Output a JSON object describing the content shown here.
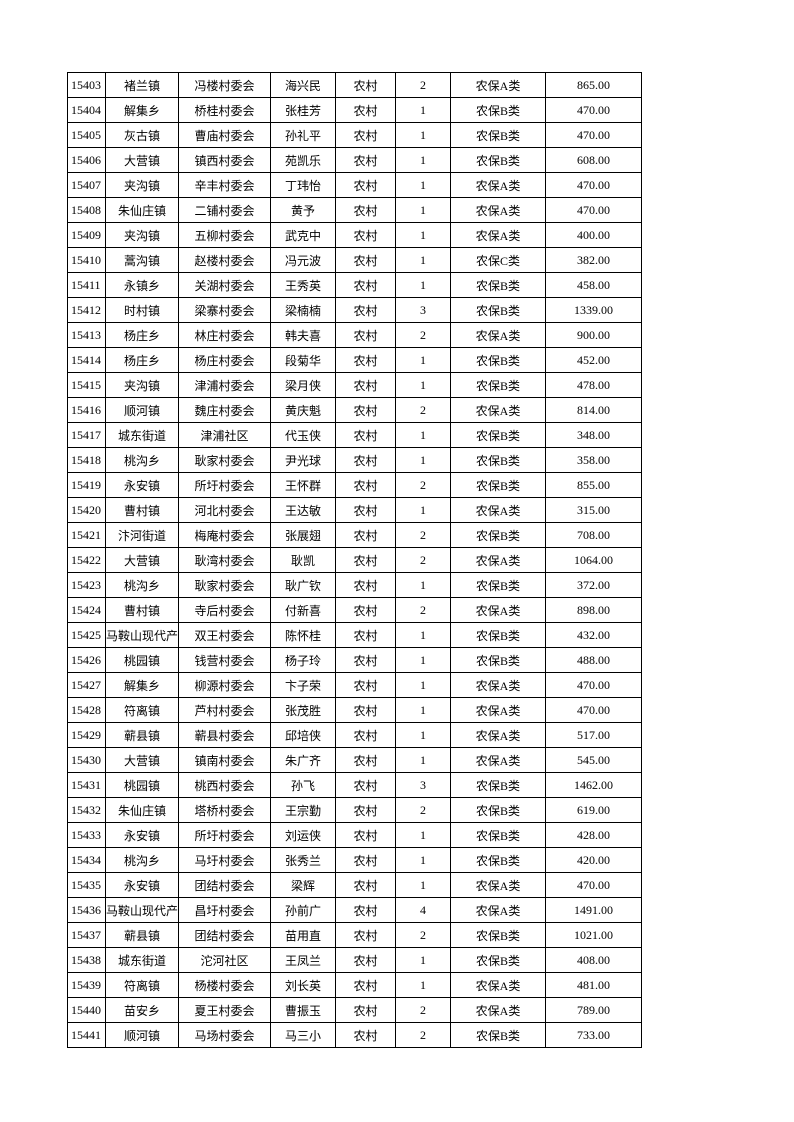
{
  "table": {
    "rows": [
      [
        "15403",
        "褚兰镇",
        "冯楼村委会",
        "海兴民",
        "农村",
        "2",
        "农保A类",
        "865.00"
      ],
      [
        "15404",
        "解集乡",
        "桥桂村委会",
        "张桂芳",
        "农村",
        "1",
        "农保B类",
        "470.00"
      ],
      [
        "15405",
        "灰古镇",
        "曹庙村委会",
        "孙礼平",
        "农村",
        "1",
        "农保B类",
        "470.00"
      ],
      [
        "15406",
        "大营镇",
        "镇西村委会",
        "苑凯乐",
        "农村",
        "1",
        "农保B类",
        "608.00"
      ],
      [
        "15407",
        "夹沟镇",
        "辛丰村委会",
        "丁玮怡",
        "农村",
        "1",
        "农保A类",
        "470.00"
      ],
      [
        "15408",
        "朱仙庄镇",
        "二铺村委会",
        "黄予",
        "农村",
        "1",
        "农保A类",
        "470.00"
      ],
      [
        "15409",
        "夹沟镇",
        "五柳村委会",
        "武克中",
        "农村",
        "1",
        "农保A类",
        "400.00"
      ],
      [
        "15410",
        "蒿沟镇",
        "赵楼村委会",
        "冯元波",
        "农村",
        "1",
        "农保C类",
        "382.00"
      ],
      [
        "15411",
        "永镇乡",
        "关湖村委会",
        "王秀英",
        "农村",
        "1",
        "农保B类",
        "458.00"
      ],
      [
        "15412",
        "时村镇",
        "梁寨村委会",
        "梁楠楠",
        "农村",
        "3",
        "农保B类",
        "1339.00"
      ],
      [
        "15413",
        "杨庄乡",
        "林庄村委会",
        "韩夫喜",
        "农村",
        "2",
        "农保A类",
        "900.00"
      ],
      [
        "15414",
        "杨庄乡",
        "杨庄村委会",
        "段菊华",
        "农村",
        "1",
        "农保B类",
        "452.00"
      ],
      [
        "15415",
        "夹沟镇",
        "津浦村委会",
        "梁月侠",
        "农村",
        "1",
        "农保B类",
        "478.00"
      ],
      [
        "15416",
        "顺河镇",
        "魏庄村委会",
        "黄庆魁",
        "农村",
        "2",
        "农保A类",
        "814.00"
      ],
      [
        "15417",
        "城东街道",
        "津浦社区",
        "代玉侠",
        "农村",
        "1",
        "农保B类",
        "348.00"
      ],
      [
        "15418",
        "桃沟乡",
        "耿家村委会",
        "尹光球",
        "农村",
        "1",
        "农保B类",
        "358.00"
      ],
      [
        "15419",
        "永安镇",
        "所圩村委会",
        "王怀群",
        "农村",
        "2",
        "农保B类",
        "855.00"
      ],
      [
        "15420",
        "曹村镇",
        "河北村委会",
        "王达敏",
        "农村",
        "1",
        "农保A类",
        "315.00"
      ],
      [
        "15421",
        "汴河街道",
        "梅庵村委会",
        "张展翅",
        "农村",
        "2",
        "农保B类",
        "708.00"
      ],
      [
        "15422",
        "大营镇",
        "耿湾村委会",
        "耿凯",
        "农村",
        "2",
        "农保A类",
        "1064.00"
      ],
      [
        "15423",
        "桃沟乡",
        "耿家村委会",
        "耿广钦",
        "农村",
        "1",
        "农保B类",
        "372.00"
      ],
      [
        "15424",
        "曹村镇",
        "寺后村委会",
        "付新喜",
        "农村",
        "2",
        "农保A类",
        "898.00"
      ],
      [
        "15425",
        "马鞍山现代产",
        "双王村委会",
        "陈怀桂",
        "农村",
        "1",
        "农保B类",
        "432.00"
      ],
      [
        "15426",
        "桃园镇",
        "钱营村委会",
        "杨子玲",
        "农村",
        "1",
        "农保B类",
        "488.00"
      ],
      [
        "15427",
        "解集乡",
        "柳源村委会",
        "卞子荣",
        "农村",
        "1",
        "农保A类",
        "470.00"
      ],
      [
        "15428",
        "符离镇",
        "芦村村委会",
        "张茂胜",
        "农村",
        "1",
        "农保A类",
        "470.00"
      ],
      [
        "15429",
        "蕲县镇",
        "蕲县村委会",
        "邱培侠",
        "农村",
        "1",
        "农保A类",
        "517.00"
      ],
      [
        "15430",
        "大营镇",
        "镇南村委会",
        "朱广齐",
        "农村",
        "1",
        "农保A类",
        "545.00"
      ],
      [
        "15431",
        "桃园镇",
        "桃西村委会",
        "孙飞",
        "农村",
        "3",
        "农保B类",
        "1462.00"
      ],
      [
        "15432",
        "朱仙庄镇",
        "塔桥村委会",
        "王宗勤",
        "农村",
        "2",
        "农保B类",
        "619.00"
      ],
      [
        "15433",
        "永安镇",
        "所圩村委会",
        "刘运侠",
        "农村",
        "1",
        "农保B类",
        "428.00"
      ],
      [
        "15434",
        "桃沟乡",
        "马圩村委会",
        "张秀兰",
        "农村",
        "1",
        "农保B类",
        "420.00"
      ],
      [
        "15435",
        "永安镇",
        "团结村委会",
        "梁辉",
        "农村",
        "1",
        "农保A类",
        "470.00"
      ],
      [
        "15436",
        "马鞍山现代产",
        "昌圩村委会",
        "孙前广",
        "农村",
        "4",
        "农保A类",
        "1491.00"
      ],
      [
        "15437",
        "蕲县镇",
        "团结村委会",
        "苗用直",
        "农村",
        "2",
        "农保B类",
        "1021.00"
      ],
      [
        "15438",
        "城东街道",
        "沱河社区",
        "王凤兰",
        "农村",
        "1",
        "农保B类",
        "408.00"
      ],
      [
        "15439",
        "符离镇",
        "杨楼村委会",
        "刘长英",
        "农村",
        "1",
        "农保A类",
        "481.00"
      ],
      [
        "15440",
        "苗安乡",
        "夏王村委会",
        "曹振玉",
        "农村",
        "2",
        "农保A类",
        "789.00"
      ],
      [
        "15441",
        "顺河镇",
        "马场村委会",
        "马三小",
        "农村",
        "2",
        "农保B类",
        "733.00"
      ]
    ]
  }
}
